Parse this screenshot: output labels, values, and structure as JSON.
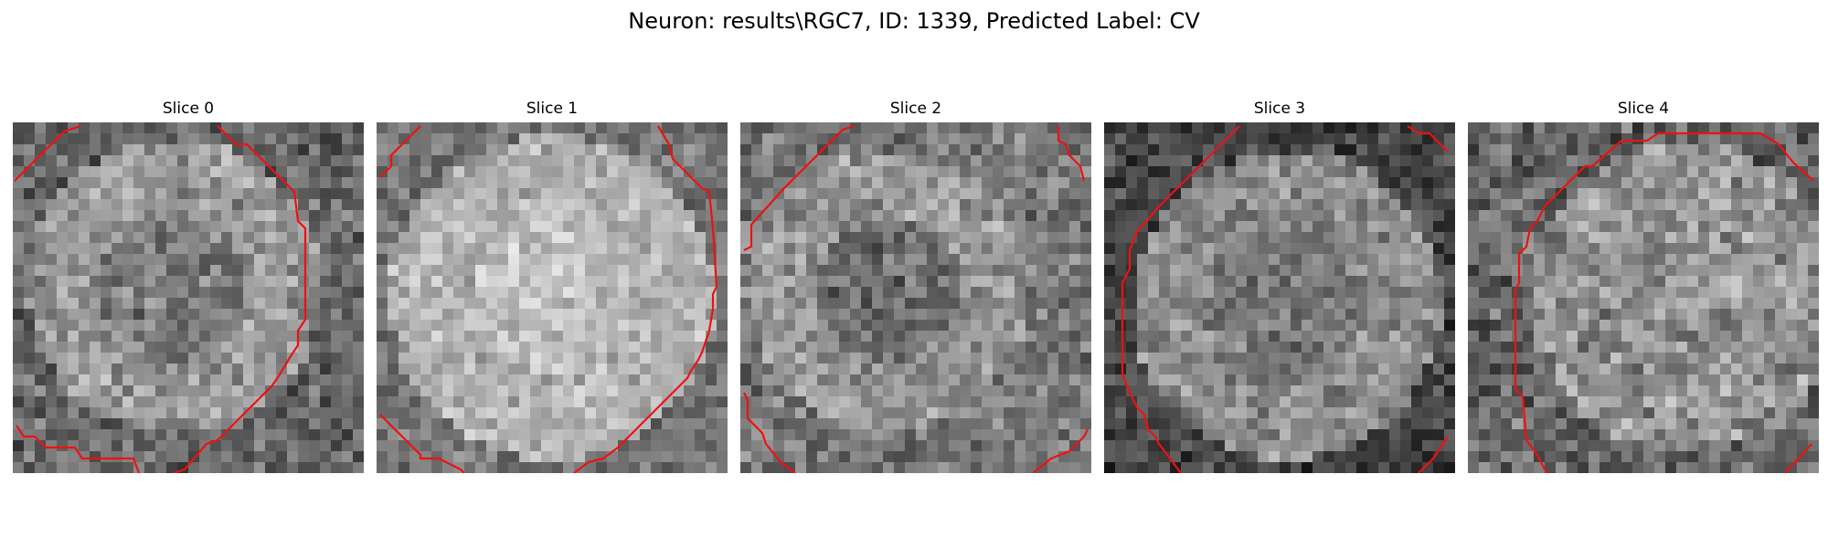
{
  "figure": {
    "title": "Neuron: results\\RGC7, ID: 1339, Predicted Label: CV",
    "contour_color": "#ee1111"
  },
  "panels": [
    {
      "title": "Slice 0"
    },
    {
      "title": "Slice 1"
    },
    {
      "title": "Slice 2"
    },
    {
      "title": "Slice 3"
    },
    {
      "title": "Slice 4"
    }
  ]
}
